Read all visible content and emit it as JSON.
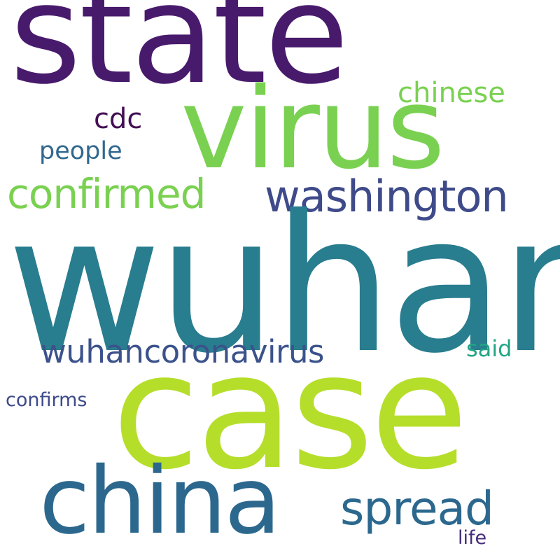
{
  "words": [
    {
      "id": "wuhan",
      "text": "wuhan",
      "color": "#287d8e"
    },
    {
      "id": "case",
      "text": "case",
      "color": "#b5de2b"
    },
    {
      "id": "state",
      "text": "state",
      "color": "#481a6c"
    },
    {
      "id": "virus",
      "text": "virus",
      "color": "#7ad151"
    },
    {
      "id": "china",
      "text": "china",
      "color": "#2c688e"
    },
    {
      "id": "washington",
      "text": "washington",
      "color": "#3e4a89"
    },
    {
      "id": "confirmed",
      "text": "confirmed",
      "color": "#7ad151"
    },
    {
      "id": "spread",
      "text": "spread",
      "color": "#2c688e"
    },
    {
      "id": "wuhancoronavirus",
      "text": "wuhancoronavirus",
      "color": "#3b528b"
    },
    {
      "id": "chinese",
      "text": "chinese",
      "color": "#7ad151"
    },
    {
      "id": "cdc",
      "text": "cdc",
      "color": "#440f54"
    },
    {
      "id": "people",
      "text": "people",
      "color": "#31688e"
    },
    {
      "id": "said",
      "text": "said",
      "color": "#21a585"
    },
    {
      "id": "confirms",
      "text": "confirms",
      "color": "#3e4a89"
    },
    {
      "id": "life",
      "text": "life",
      "color": "#472d7b"
    }
  ]
}
